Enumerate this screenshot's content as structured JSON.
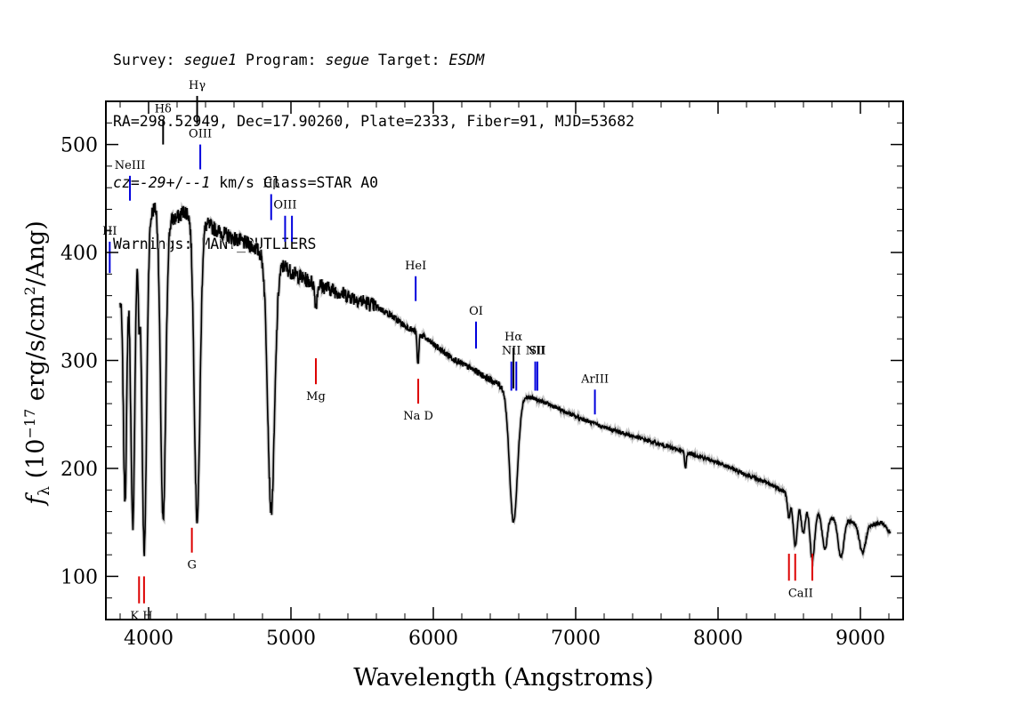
{
  "header": {
    "survey_label": "Survey: ",
    "survey": "segue1",
    "program_label": " Program: ",
    "program": "segue",
    "target_label": " Target: ",
    "target": "ESDM",
    "line2": "RA=298.52949, Dec=17.90260, Plate=2333, Fiber=91, MJD=53682",
    "cz_label": "cz=",
    "cz_value": "-29",
    "cz_pm": "+/-",
    "cz_err": "-1",
    "cz_rest": " km/s Class=STAR A0",
    "line4": "Warnings: MANY_OUTLIERS"
  },
  "chart_data": {
    "type": "line",
    "title": "",
    "xlabel": "Wavelength (Angstroms)",
    "ylabel": "f_λ (10^-17 erg/s/cm^2/Ang)",
    "xlim": [
      3700,
      9300
    ],
    "ylim": [
      60,
      540
    ],
    "xticks": [
      4000,
      5000,
      6000,
      7000,
      8000,
      9000
    ],
    "yticks": [
      100,
      200,
      300,
      400,
      500
    ],
    "grid": false,
    "series": [
      {
        "color": "#000000",
        "continuum": [
          [
            3800,
            355
          ],
          [
            3850,
            395
          ],
          [
            3900,
            412
          ],
          [
            3950,
            420
          ],
          [
            4000,
            430
          ],
          [
            4050,
            445
          ],
          [
            4100,
            440
          ],
          [
            4150,
            430
          ],
          [
            4200,
            432
          ],
          [
            4250,
            438
          ],
          [
            4300,
            436
          ],
          [
            4350,
            432
          ],
          [
            4400,
            427
          ],
          [
            4450,
            423
          ],
          [
            4500,
            419
          ],
          [
            4550,
            416
          ],
          [
            4600,
            413
          ],
          [
            4650,
            410
          ],
          [
            4700,
            408
          ],
          [
            4750,
            404
          ],
          [
            4800,
            398
          ],
          [
            4850,
            393
          ],
          [
            4900,
            385
          ],
          [
            4950,
            388
          ],
          [
            5000,
            382
          ],
          [
            5100,
            375
          ],
          [
            5200,
            370
          ],
          [
            5300,
            365
          ],
          [
            5400,
            360
          ],
          [
            5500,
            355
          ],
          [
            5600,
            350
          ],
          [
            5700,
            342
          ],
          [
            5800,
            332
          ],
          [
            5900,
            325
          ],
          [
            6000,
            315
          ],
          [
            6100,
            305
          ],
          [
            6200,
            297
          ],
          [
            6300,
            290
          ],
          [
            6400,
            282
          ],
          [
            6500,
            275
          ],
          [
            6600,
            268
          ],
          [
            6700,
            265
          ],
          [
            6800,
            260
          ],
          [
            6900,
            254
          ],
          [
            7000,
            248
          ],
          [
            7100,
            243
          ],
          [
            7200,
            238
          ],
          [
            7300,
            234
          ],
          [
            7400,
            230
          ],
          [
            7500,
            226
          ],
          [
            7600,
            222
          ],
          [
            7700,
            218
          ],
          [
            7800,
            214
          ],
          [
            7900,
            210
          ],
          [
            8000,
            205
          ],
          [
            8100,
            200
          ],
          [
            8200,
            194
          ],
          [
            8300,
            189
          ],
          [
            8400,
            183
          ],
          [
            8500,
            176
          ],
          [
            8600,
            168
          ],
          [
            8700,
            160
          ],
          [
            8800,
            155
          ],
          [
            8900,
            152
          ],
          [
            9000,
            149
          ],
          [
            9100,
            148
          ],
          [
            9150,
            150
          ],
          [
            9210,
            140
          ]
        ],
        "absorption_lines": [
          {
            "wave": 3835,
            "depth": 210,
            "width": 12
          },
          {
            "wave": 3889,
            "depth": 260,
            "width": 14
          },
          {
            "wave": 3933,
            "depth": 70,
            "width": 6
          },
          {
            "wave": 3970,
            "depth": 300,
            "width": 16
          },
          {
            "wave": 4102,
            "depth": 290,
            "width": 18
          },
          {
            "wave": 4341,
            "depth": 280,
            "width": 20
          },
          {
            "wave": 4861,
            "depth": 230,
            "width": 24
          },
          {
            "wave": 5175,
            "depth": 20,
            "width": 8
          },
          {
            "wave": 5892,
            "depth": 30,
            "width": 6
          },
          {
            "wave": 6563,
            "depth": 120,
            "width": 28
          },
          {
            "wave": 7771,
            "depth": 15,
            "width": 6
          },
          {
            "wave": 8498,
            "depth": 22,
            "width": 10
          },
          {
            "wave": 8542,
            "depth": 45,
            "width": 14
          },
          {
            "wave": 8598,
            "depth": 28,
            "width": 14
          },
          {
            "wave": 8662,
            "depth": 48,
            "width": 16
          },
          {
            "wave": 8750,
            "depth": 32,
            "width": 18
          },
          {
            "wave": 8863,
            "depth": 35,
            "width": 20
          },
          {
            "wave": 9015,
            "depth": 27,
            "width": 22
          }
        ]
      }
    ],
    "emission_labels": [
      {
        "label": "HI",
        "wave": 3727,
        "top": 410,
        "bottom": 381,
        "color": "#0000dd"
      },
      {
        "label": "NeIII",
        "wave": 3869,
        "top": 471,
        "bottom": 448,
        "color": "#0000dd"
      },
      {
        "label": "Hδ",
        "wave": 4102,
        "top": 523,
        "bottom": 500,
        "color": "#000000"
      },
      {
        "label": "Hγ",
        "wave": 4341,
        "top": 545,
        "bottom": 519,
        "color": "#000000"
      },
      {
        "label": "OIII",
        "wave": 4363,
        "top": 500,
        "bottom": 477,
        "color": "#0000dd"
      },
      {
        "label": "Hβ",
        "wave": 4861,
        "top": 454,
        "bottom": 430,
        "color": "#0000dd"
      },
      {
        "label": "OIII",
        "wave": 4959,
        "top": 434,
        "bottom": 410,
        "color": "#0000dd"
      },
      {
        "label": "",
        "wave": 5007,
        "top": 434,
        "bottom": 410,
        "color": "#0000dd"
      },
      {
        "label": "HeI",
        "wave": 5876,
        "top": 378,
        "bottom": 355,
        "color": "#0000dd"
      },
      {
        "label": "OI",
        "wave": 6300,
        "top": 336,
        "bottom": 311,
        "color": "#0000dd"
      },
      {
        "label": "NII",
        "wave": 6548,
        "top": 299,
        "bottom": 272,
        "color": "#0000dd"
      },
      {
        "label": "Hα",
        "wave": 6563,
        "top": 312,
        "bottom": 274,
        "color": "#000000"
      },
      {
        "label": "",
        "wave": 6583,
        "top": 299,
        "bottom": 272,
        "color": "#0000dd"
      },
      {
        "label": "NII",
        "wave": 6716,
        "top": 299,
        "bottom": 272,
        "color": "#0000dd"
      },
      {
        "label": "SII",
        "wave": 6731,
        "top": 299,
        "bottom": 272,
        "color": "#0000dd"
      },
      {
        "label": "ArIII",
        "wave": 7135,
        "top": 273,
        "bottom": 250,
        "color": "#0000dd"
      }
    ],
    "absorption_labels": [
      {
        "label": "K H",
        "wave": 3950,
        "top": 100,
        "bottom": 75,
        "color": "#dd0000",
        "ticks": [
          3933,
          3968
        ]
      },
      {
        "label": "G",
        "wave": 4304,
        "top": 145,
        "bottom": 122,
        "color": "#dd0000",
        "ticks": [
          4304
        ]
      },
      {
        "label": "Mg",
        "wave": 5175,
        "top": 302,
        "bottom": 278,
        "color": "#dd0000",
        "ticks": [
          5175
        ]
      },
      {
        "label": "Na D",
        "wave": 5894,
        "top": 283,
        "bottom": 260,
        "color": "#dd0000",
        "ticks": [
          5894
        ]
      },
      {
        "label": "CaII",
        "wave": 8580,
        "top": 121,
        "bottom": 96,
        "color": "#dd0000",
        "ticks": [
          8498,
          8542,
          8662
        ]
      }
    ]
  }
}
